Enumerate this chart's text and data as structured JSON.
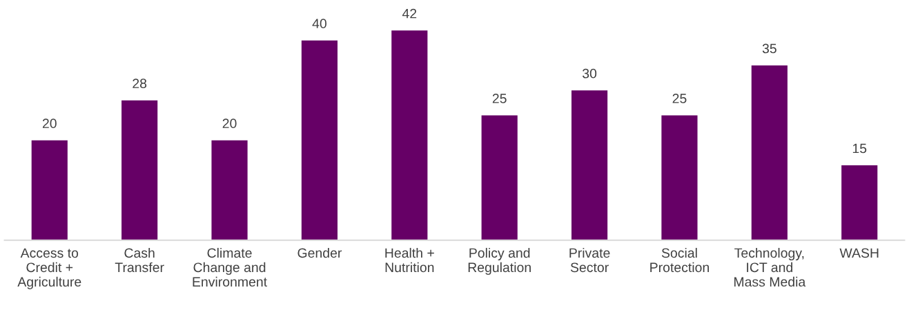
{
  "chart_data": {
    "type": "bar",
    "categories": [
      "Access to Credit + Agriculture",
      "Cash Transfer",
      "Climate Change and Environment",
      "Gender",
      "Health + Nutrition",
      "Policy and Regulation",
      "Private Sector",
      "Social Protection",
      "Technology, ICT and Mass Media",
      "WASH"
    ],
    "values": [
      20,
      28,
      20,
      40,
      42,
      25,
      30,
      25,
      35,
      15
    ],
    "color": "#660066",
    "data_labels": true,
    "grid": false,
    "tick_labels": "x"
  }
}
